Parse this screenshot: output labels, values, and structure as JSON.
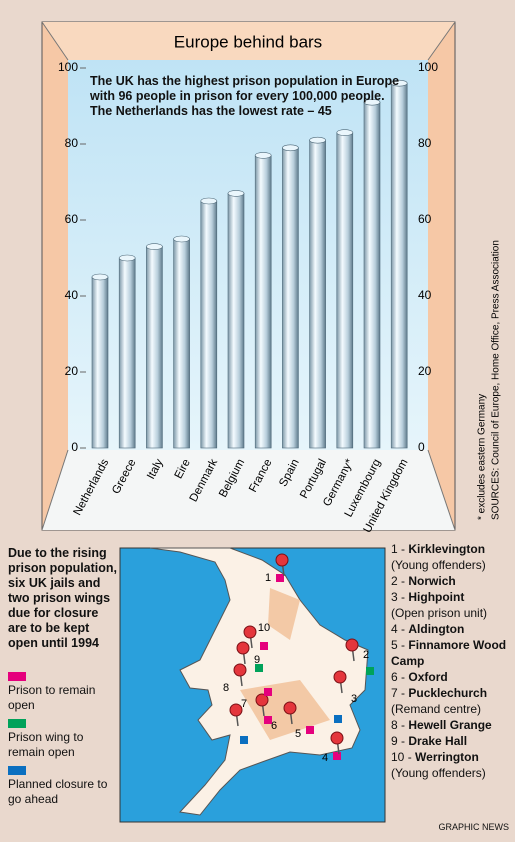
{
  "chart_data": {
    "type": "bar",
    "title": "Europe behind bars",
    "annotation": "The UK has the highest prison population in Europe with 96 people in prison for every 100,000 people. The Netherlands has the lowest rate – 45",
    "categories": [
      "Netherlands",
      "Greece",
      "Italy",
      "Eire",
      "Denmark",
      "Belgium",
      "France",
      "Spain",
      "Portugal",
      "Germany*",
      "Luxembourg",
      "United Kingdom"
    ],
    "values": [
      45,
      50,
      53,
      55,
      65,
      67,
      77,
      79,
      81,
      83,
      91,
      96
    ],
    "ylim": [
      0,
      100
    ],
    "yticks": [
      0,
      20,
      40,
      60,
      80,
      100
    ],
    "grid": false,
    "footnote": "* excludes eastern Germany",
    "sources": "SOURCES: Council of Europe, Home Office, Press Association"
  },
  "map": {
    "intro": "Due to the rising prison population, six UK jails and two prison wings due for closure are to be kept open until 1994",
    "legend": [
      {
        "label": "Prison to remain open",
        "color": "#e5007d"
      },
      {
        "label": "Prison wing  to remain open",
        "color": "#00a25a"
      },
      {
        "label": "Planned closure to go ahead",
        "color": "#0a6fc0"
      }
    ],
    "prisons": [
      {
        "number": "1",
        "name": "Kirklevington",
        "note": "(Young offenders)",
        "status": 0
      },
      {
        "number": "2",
        "name": "Norwich",
        "status": 1
      },
      {
        "number": "3",
        "name": "Highpoint",
        "note": "(Open prison unit)",
        "status": 2
      },
      {
        "number": "4",
        "name": "Aldington",
        "status": 0
      },
      {
        "number": "5",
        "name": "Finnamore Wood Camp",
        "status": 0
      },
      {
        "number": "6",
        "name": "Oxford",
        "status": 0
      },
      {
        "number": "7",
        "name": "Pucklechurch",
        "note": "(Remand centre)",
        "status": 2
      },
      {
        "number": "8",
        "name": "Hewell Grange",
        "status": 0
      },
      {
        "number": "9",
        "name": "Drake Hall",
        "status": 1
      },
      {
        "number": "10",
        "name": "Werrington",
        "note": "(Young offenders)",
        "status": 0
      }
    ]
  },
  "credit": "GRAPHIC NEWS"
}
